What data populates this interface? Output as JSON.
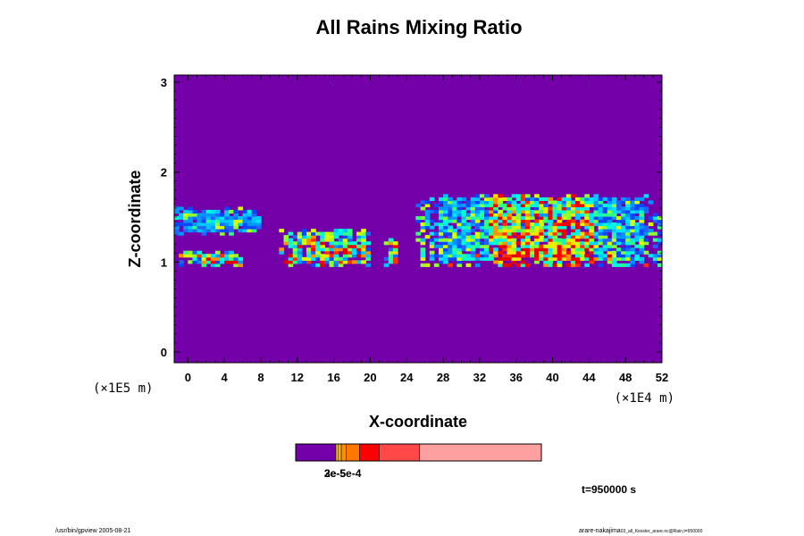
{
  "chart_data": {
    "type": "heatmap",
    "title": "All Rains Mixing Ratio",
    "xlabel": "X-coordinate",
    "ylabel": "Z-coordinate",
    "x_scale_label": "(×1E4 m)",
    "y_scale_label": "(×1E5 m)",
    "xlim": [
      -1.5,
      52
    ],
    "ylim": [
      -0.12,
      3.08
    ],
    "x_ticks": [
      "0",
      "4",
      "8",
      "12",
      "16",
      "20",
      "24",
      "28",
      "32",
      "36",
      "40",
      "44",
      "48",
      "52"
    ],
    "y_ticks": [
      "0",
      "1",
      "2",
      "3"
    ],
    "background_color": "#7300a8",
    "rain_regions": [
      {
        "x_range": [
          -1.5,
          8
        ],
        "z_range": [
          1.3,
          1.6
        ],
        "level": "low"
      },
      {
        "x_range": [
          -1,
          6
        ],
        "z_range": [
          0.95,
          1.1
        ],
        "level": "mixed"
      },
      {
        "x_range": [
          10,
          20
        ],
        "z_range": [
          0.95,
          1.35
        ],
        "level": "mixed"
      },
      {
        "x_range": [
          21.5,
          23
        ],
        "z_range": [
          0.95,
          1.25
        ],
        "level": "mixed"
      },
      {
        "x_range": [
          25,
          52
        ],
        "z_range": [
          0.95,
          1.75
        ],
        "level": "high",
        "core_x": [
          33,
          44
        ]
      }
    ],
    "colorbar": {
      "colors": [
        "#7300a8",
        "#ffe000",
        "#ffb000",
        "#ff7800",
        "#ff0000",
        "#ff4848",
        "#ffa0a0"
      ],
      "label": "3e-5e-4",
      "label_layers": [
        "2e-5",
        "3e-5",
        "5e-4"
      ]
    }
  },
  "time_label": "t=950000 s",
  "footer_left": "/usr/bin/gpview 2005-08-21",
  "footer_right_main": "arare-nakajima",
  "footer_right_sub": "03_all_Kessler_arare.nc@Rain,t=950000"
}
